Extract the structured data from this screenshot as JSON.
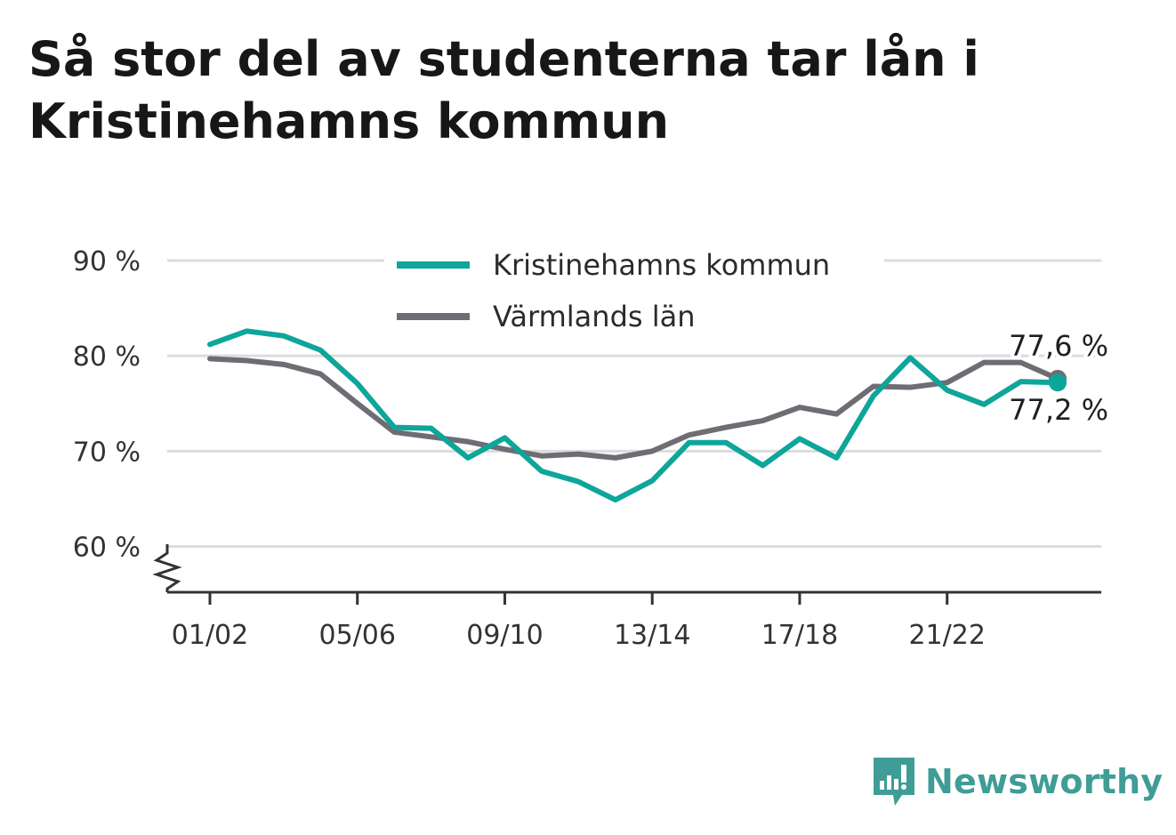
{
  "title": "Så stor del av studenterna tar lån i Kristinehamns kommun",
  "brand": {
    "name": "Newsworthy",
    "icon": "newsworthy-logo-icon",
    "color": "#3f9c96"
  },
  "chart_data": {
    "type": "line",
    "x": [
      "01/02",
      "02/03",
      "03/04",
      "04/05",
      "05/06",
      "06/07",
      "07/08",
      "08/09",
      "09/10",
      "10/11",
      "11/12",
      "12/13",
      "13/14",
      "14/15",
      "15/16",
      "16/17",
      "17/18",
      "18/19",
      "19/20",
      "20/21",
      "21/22",
      "22/23",
      "23/24",
      "24/25"
    ],
    "x_tick_labels": [
      "01/02",
      "05/06",
      "09/10",
      "13/14",
      "17/18",
      "21/22"
    ],
    "y_tick_labels": [
      "60 %",
      "70 %",
      "80 %",
      "90 %"
    ],
    "ylim": [
      55.2,
      90
    ],
    "y_ticks": [
      60,
      70,
      80,
      90
    ],
    "y_axis_break": true,
    "grid": true,
    "legend_position": "top",
    "series": [
      {
        "name": "Kristinehamns kommun",
        "color": "#0ea59a",
        "values": [
          81.2,
          82.6,
          82.1,
          80.6,
          77.1,
          72.5,
          72.4,
          69.3,
          71.4,
          67.9,
          66.8,
          64.9,
          66.9,
          70.9,
          70.9,
          68.5,
          71.3,
          69.3,
          75.8,
          79.8,
          76.4,
          74.9,
          77.3,
          77.2
        ],
        "end_label": "77,2 %"
      },
      {
        "name": "Värmlands län",
        "color": "#6f6d73",
        "values": [
          79.7,
          79.5,
          79.1,
          78.1,
          75.0,
          72.0,
          71.5,
          71.0,
          70.2,
          69.5,
          69.7,
          69.3,
          70.0,
          71.7,
          72.5,
          73.2,
          74.6,
          73.9,
          76.8,
          76.7,
          77.2,
          79.3,
          79.3,
          77.6
        ],
        "end_label": "77,6 %"
      }
    ]
  }
}
